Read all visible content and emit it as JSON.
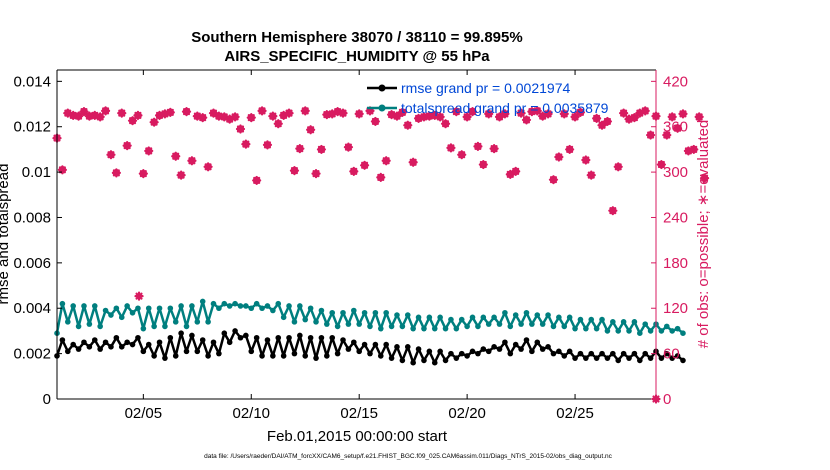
{
  "colors": {
    "rmse": "#000000",
    "totalspread": "#007f7f",
    "obs": "#d81b60",
    "legend_text": "#0047d6",
    "axis": "#000000",
    "right_axis": "#d81b60"
  },
  "chart_data": {
    "type": "line",
    "title": "Southern Hemisphere 38070 / 38110 = 99.895%",
    "subtitle": "AIRS_SPECIFIC_HUMIDITY @ 55 hPa",
    "xlabel": "Feb.01,2015 00:00:00 start",
    "ylabel_left": "rmse and totalspread",
    "ylabel_right": "# of obs: o=possible; ∗=evaluated",
    "footnote": "data file: /Users/raeder/DAI/ATM_forcXX/CAM6_setup/f.e21.FHIST_BGC.f09_025.CAM6assim.011/Diags_NTrS_2015-02/obs_diag_output.nc",
    "xlim": [
      1.0,
      28.75
    ],
    "ylim_left": [
      0,
      0.0145
    ],
    "ylim_right": [
      0,
      435
    ],
    "x_ticks": [
      5,
      10,
      15,
      20,
      25
    ],
    "x_tick_labels": [
      "02/05",
      "02/10",
      "02/15",
      "02/20",
      "02/25"
    ],
    "y_left_ticks": [
      0,
      0.002,
      0.004,
      0.006,
      0.008,
      0.01,
      0.012,
      0.014
    ],
    "y_left_tick_labels": [
      "0",
      "0.002",
      "0.004",
      "0.006",
      "0.008",
      "0.01",
      "0.012",
      "0.014"
    ],
    "y_right_ticks": [
      0,
      60,
      120,
      180,
      240,
      300,
      360,
      420
    ],
    "y_right_tick_labels": [
      "0",
      "60",
      "120",
      "180",
      "240",
      "300",
      "360",
      "420"
    ],
    "x_step_days": 0.25,
    "x_start_day": 1.0,
    "legend": {
      "placement": "top-right",
      "entries": [
        "rmse grand pr = 0.0021974",
        "totalspread grand pr = 0.0035879"
      ]
    },
    "series": [
      {
        "name": "rmse grand pr = 0.0021974",
        "axis": "left",
        "marker": "circle",
        "values": [
          0.0019,
          0.0026,
          0.0021,
          0.0024,
          0.0022,
          0.0025,
          0.0023,
          0.0026,
          0.0022,
          0.0025,
          0.0023,
          0.0027,
          0.0023,
          0.0025,
          0.0024,
          0.0027,
          0.0021,
          0.0024,
          0.0019,
          0.0025,
          0.0018,
          0.0027,
          0.0019,
          0.0029,
          0.0021,
          0.0028,
          0.0021,
          0.0026,
          0.0019,
          0.0025,
          0.002,
          0.0029,
          0.0025,
          0.003,
          0.0027,
          0.0028,
          0.0021,
          0.0027,
          0.0019,
          0.0026,
          0.0019,
          0.0027,
          0.0019,
          0.0027,
          0.002,
          0.0028,
          0.0019,
          0.0027,
          0.0018,
          0.0027,
          0.0019,
          0.0027,
          0.002,
          0.0026,
          0.0022,
          0.0025,
          0.0021,
          0.0024,
          0.002,
          0.0024,
          0.0019,
          0.0024,
          0.0018,
          0.0023,
          0.0017,
          0.0023,
          0.0016,
          0.0022,
          0.0017,
          0.0021,
          0.0016,
          0.0021,
          0.0017,
          0.002,
          0.0018,
          0.002,
          0.0019,
          0.0021,
          0.002,
          0.0022,
          0.0021,
          0.0023,
          0.0022,
          0.0025,
          0.002,
          0.0024,
          0.0022,
          0.0026,
          0.0021,
          0.0025,
          0.0022,
          0.0023,
          0.002,
          0.0021,
          0.0019,
          0.0021,
          0.0018,
          0.002,
          0.0018,
          0.002,
          0.0018,
          0.002,
          0.0018,
          0.002,
          0.0017,
          0.002,
          0.0018,
          0.002,
          0.0017,
          0.002,
          0.0018,
          0.0021,
          0.0018,
          0.002,
          0.0018,
          0.0019,
          0.0017
        ]
      },
      {
        "name": "totalspread grand pr = 0.0035879",
        "axis": "left",
        "marker": "circle",
        "values": [
          0.0029,
          0.0042,
          0.0034,
          0.0041,
          0.0032,
          0.0041,
          0.0033,
          0.0041,
          0.0032,
          0.0039,
          0.0037,
          0.004,
          0.0036,
          0.0041,
          0.0038,
          0.004,
          0.0031,
          0.004,
          0.0032,
          0.004,
          0.0032,
          0.004,
          0.0034,
          0.0041,
          0.0032,
          0.0041,
          0.0034,
          0.0043,
          0.0034,
          0.0042,
          0.004,
          0.0042,
          0.0041,
          0.0042,
          0.0041,
          0.0041,
          0.004,
          0.0042,
          0.004,
          0.0041,
          0.0039,
          0.0042,
          0.0036,
          0.0041,
          0.0034,
          0.0041,
          0.0035,
          0.004,
          0.0034,
          0.0039,
          0.0033,
          0.0038,
          0.0032,
          0.0038,
          0.0033,
          0.0039,
          0.0033,
          0.0038,
          0.0032,
          0.0038,
          0.0031,
          0.0038,
          0.0032,
          0.0037,
          0.0032,
          0.0037,
          0.0031,
          0.0036,
          0.0031,
          0.0036,
          0.0031,
          0.0036,
          0.0031,
          0.0035,
          0.0031,
          0.0035,
          0.0032,
          0.0036,
          0.0032,
          0.0036,
          0.0033,
          0.0036,
          0.0033,
          0.0038,
          0.0032,
          0.0037,
          0.0033,
          0.0038,
          0.0033,
          0.0037,
          0.0033,
          0.0037,
          0.0032,
          0.0036,
          0.0032,
          0.0036,
          0.0031,
          0.0035,
          0.0031,
          0.0035,
          0.0031,
          0.0035,
          0.003,
          0.0034,
          0.003,
          0.0034,
          0.003,
          0.0034,
          0.0029,
          0.0033,
          0.003,
          0.0033,
          0.003,
          0.0032,
          0.003,
          0.0031,
          0.0029
        ]
      },
      {
        "name": "# of obs possible",
        "axis": "right",
        "marker": "o",
        "values": [
          345,
          303,
          378,
          375,
          374,
          380,
          374,
          375,
          373,
          381,
          323,
          299,
          378,
          335,
          368,
          375,
          298,
          328,
          366,
          375,
          377,
          379,
          321,
          296,
          380,
          315,
          374,
          372,
          307,
          378,
          374,
          373,
          370,
          373,
          357,
          337,
          372,
          289,
          381,
          336,
          374,
          364,
          375,
          378,
          302,
          331,
          381,
          356,
          298,
          330,
          376,
          377,
          380,
          378,
          333,
          301,
          377,
          309,
          381,
          367,
          293,
          315,
          376,
          374,
          379,
          362,
          313,
          371,
          373,
          374,
          375,
          373,
          364,
          332,
          380,
          323,
          373,
          380,
          334,
          310,
          377,
          331,
          373,
          377,
          297,
          301,
          378,
          369,
          380,
          381,
          374,
          377,
          290,
          320,
          377,
          330,
          373,
          379,
          316,
          296,
          371,
          362,
          367,
          249,
          307,
          378,
          370,
          372,
          378,
          381,
          349,
          374,
          310,
          349,
          373,
          358,
          377,
          328,
          330,
          373,
          292
        ]
      },
      {
        "name": "# of obs evaluated",
        "axis": "right",
        "marker": "asterisk",
        "values": [
          345,
          303,
          378,
          375,
          374,
          380,
          374,
          375,
          373,
          381,
          323,
          299,
          378,
          335,
          368,
          375,
          298,
          328,
          366,
          375,
          377,
          379,
          321,
          296,
          380,
          315,
          374,
          372,
          307,
          378,
          374,
          373,
          370,
          373,
          357,
          337,
          372,
          289,
          381,
          336,
          374,
          364,
          375,
          378,
          302,
          331,
          381,
          356,
          298,
          330,
          376,
          377,
          380,
          378,
          333,
          301,
          377,
          309,
          381,
          367,
          293,
          315,
          376,
          374,
          379,
          362,
          313,
          371,
          373,
          374,
          375,
          373,
          364,
          332,
          380,
          323,
          373,
          380,
          334,
          310,
          377,
          331,
          373,
          377,
          297,
          301,
          378,
          369,
          380,
          381,
          374,
          377,
          290,
          320,
          377,
          330,
          373,
          379,
          316,
          296,
          371,
          362,
          367,
          249,
          307,
          378,
          370,
          372,
          378,
          381,
          349,
          374,
          310,
          349,
          373,
          358,
          377,
          328,
          330,
          373,
          292
        ]
      }
    ],
    "extra_points": [
      {
        "name": "obs-outlier",
        "x": 4.8,
        "y_right": 136
      },
      {
        "name": "obs-zero",
        "x": 28.75,
        "y_right": 0
      }
    ]
  }
}
